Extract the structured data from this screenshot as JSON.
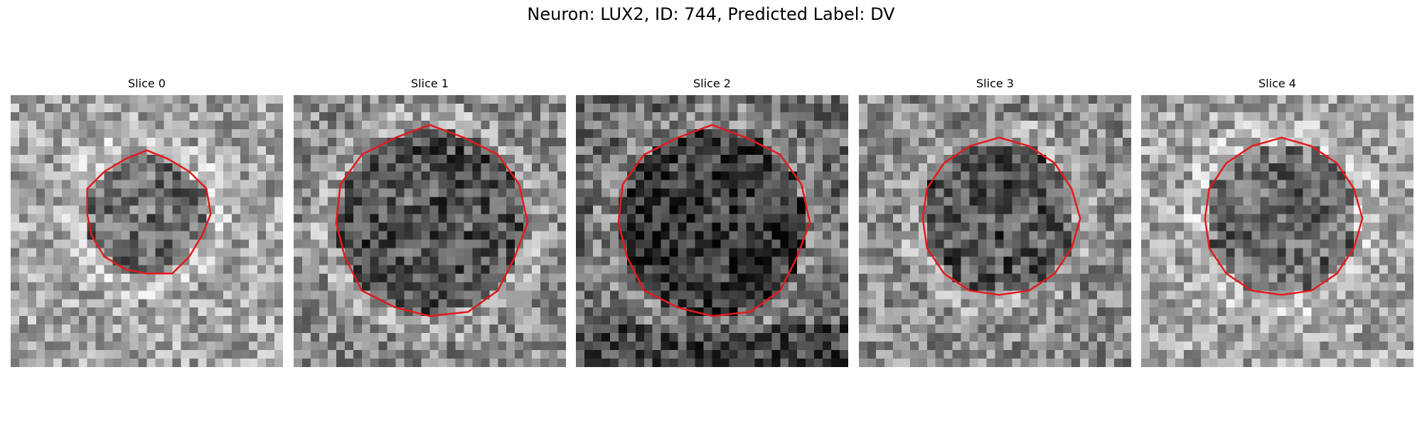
{
  "figure": {
    "title": "Neuron: LUX2, ID: 744, Predicted Label: DV"
  },
  "outline_color": "#e41a1c",
  "panels": [
    {
      "title": "Slice 0",
      "seed": 11,
      "brightness": "light",
      "roi": "small"
    },
    {
      "title": "Slice 1",
      "seed": 23,
      "brightness": "mixed",
      "roi": "large"
    },
    {
      "title": "Slice 2",
      "seed": 37,
      "brightness": "dark",
      "roi": "large"
    },
    {
      "title": "Slice 3",
      "seed": 41,
      "brightness": "mixed",
      "roi": "medium"
    },
    {
      "title": "Slice 4",
      "seed": 53,
      "brightness": "light",
      "roi": "medium"
    }
  ]
}
